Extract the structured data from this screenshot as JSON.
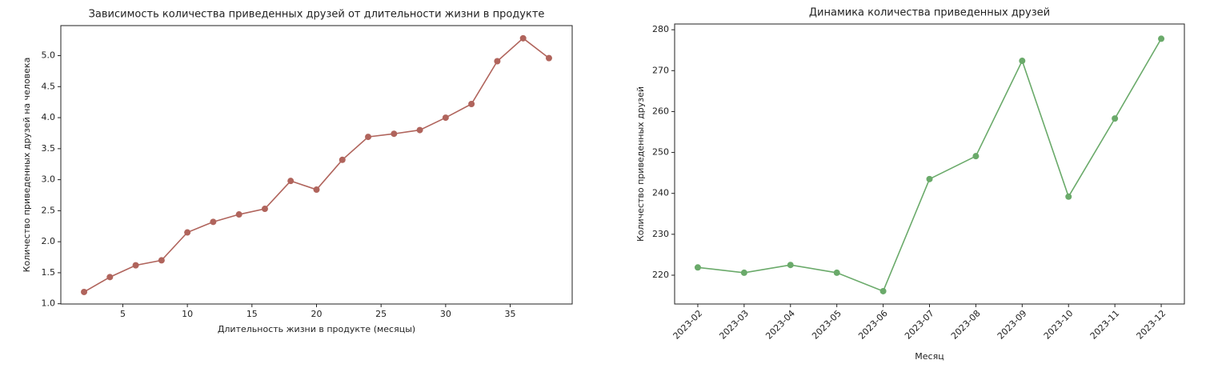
{
  "chart_data": [
    {
      "type": "line",
      "title": "Зависимость количества приведенных друзей от длительности жизни в продукте",
      "x_label": "Длительность жизни в продукте (месяцы)",
      "y_label": "Количество приведенных друзей на человека",
      "x": [
        2,
        4,
        6,
        8,
        10,
        12,
        14,
        16,
        18,
        20,
        22,
        24,
        26,
        28,
        30,
        32,
        34,
        36,
        38
      ],
      "series": [
        {
          "color": "#b0645c",
          "values": [
            1.19,
            1.43,
            1.62,
            1.7,
            2.15,
            2.32,
            2.44,
            2.53,
            2.98,
            2.84,
            3.32,
            3.69,
            3.74,
            3.8,
            4.0,
            4.22,
            4.91,
            5.28,
            4.96
          ]
        }
      ],
      "xlim": [
        0.2,
        39.8
      ],
      "xticks": [
        5,
        10,
        15,
        20,
        25,
        30,
        35
      ],
      "ylim": [
        0.996,
        5.484
      ],
      "yticks": [
        {
          "value": 1,
          "label": "1.0"
        },
        1.5,
        {
          "value": 2,
          "label": "2.0"
        },
        2.5,
        {
          "value": 3,
          "label": "3.0"
        },
        3.5,
        {
          "value": 4,
          "label": "4.0"
        },
        4.5,
        {
          "value": 5,
          "label": "5.0"
        }
      ]
    },
    {
      "type": "line",
      "title": "Динамика количества приведенных друзей",
      "x_label": "Месяц",
      "y_label": "Количество приведенных друзей",
      "categories": [
        "2023-02",
        "2023-03",
        "2023-04",
        "2023-05",
        "2023-06",
        "2023-07",
        "2023-08",
        "2023-09",
        "2023-10",
        "2023-11",
        "2023-12"
      ],
      "series": [
        {
          "color": "#6aaa6a",
          "values": [
            221.9,
            220.6,
            222.5,
            220.6,
            216.1,
            243.5,
            249.1,
            272.4,
            239.2,
            258.3,
            277.8
          ]
        }
      ],
      "ylim": [
        212.96,
        281.4
      ],
      "yticks": [
        220,
        230,
        240,
        250,
        260,
        270,
        280
      ]
    }
  ]
}
